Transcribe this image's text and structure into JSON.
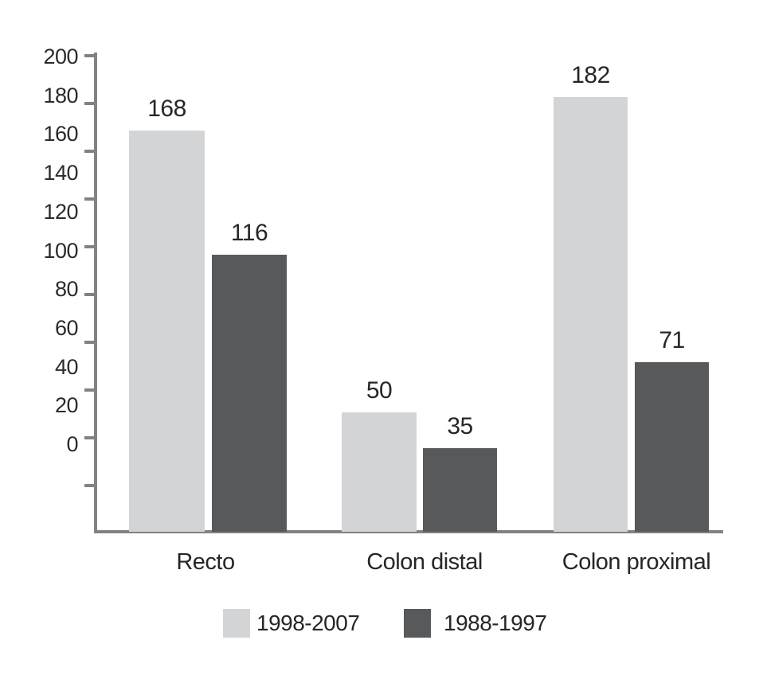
{
  "chart_data": {
    "type": "bar",
    "categories": [
      "Recto",
      "Colon distal",
      "Colon proximal"
    ],
    "series": [
      {
        "name": "1998-2007",
        "color": "#d3d4d6",
        "values": [
          168,
          50,
          182
        ]
      },
      {
        "name": "1988-1997",
        "color": "#58595b",
        "values": [
          116,
          35,
          71
        ]
      }
    ],
    "value_labels": true,
    "title": "",
    "xlabel": "",
    "ylabel": "",
    "ylim": [
      0,
      200
    ],
    "yticks": [
      200,
      180,
      160,
      140,
      120,
      100,
      80,
      60,
      40,
      20,
      0
    ],
    "grid": false,
    "legend_position": "bottom",
    "colors": {
      "axis": "#808285",
      "text": "#262626",
      "background": "#ffffff"
    }
  }
}
